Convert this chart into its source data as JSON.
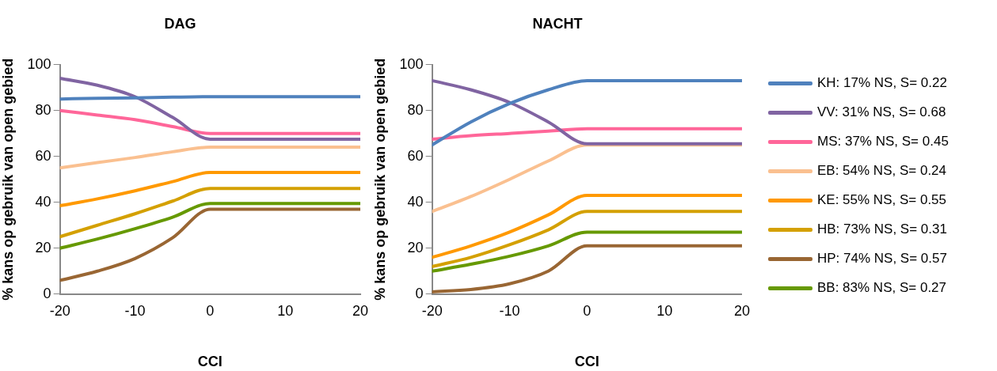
{
  "chart_data": [
    {
      "type": "line",
      "title": "DAG",
      "xlabel": "CCI",
      "ylabel": "% kans op gebruik van open gebied",
      "xlim": [
        -20,
        20
      ],
      "xticks": [
        -20,
        -10,
        0,
        10,
        20
      ],
      "ylim": [
        0,
        100
      ],
      "yticks": [
        0,
        20,
        40,
        60,
        80,
        100
      ],
      "grid": false,
      "legend": false,
      "marker": "none",
      "line_style": "solid",
      "x": [
        -20,
        -15,
        -10,
        -5,
        0,
        20
      ],
      "series": [
        {
          "color": "#4f81bd",
          "values": [
            85,
            85.3,
            85.5,
            85.8,
            86,
            86
          ]
        },
        {
          "color": "#8064a2",
          "values": [
            94,
            91,
            86,
            77,
            67.5,
            67.5
          ]
        },
        {
          "color": "#ff6699",
          "values": [
            80,
            78,
            76,
            73,
            70,
            70
          ]
        },
        {
          "color": "#fac090",
          "values": [
            55,
            57.3,
            59.5,
            62,
            64,
            64
          ]
        },
        {
          "color": "#ff9900",
          "values": [
            38.5,
            41.5,
            45,
            49,
            53,
            53
          ]
        },
        {
          "color": "#d4a000",
          "values": [
            25,
            30,
            35,
            40.5,
            46,
            46
          ]
        },
        {
          "color": "#996633",
          "values": [
            6,
            10,
            15.5,
            24.5,
            37,
            37
          ]
        },
        {
          "color": "#669900",
          "values": [
            20,
            24,
            28.5,
            33.5,
            39.5,
            39.5
          ]
        }
      ]
    },
    {
      "type": "line",
      "title": "NACHT",
      "xlabel": "CCI",
      "ylabel": "% kans op gebruik van open gebied",
      "xlim": [
        -20,
        20
      ],
      "xticks": [
        -20,
        -10,
        0,
        10,
        20
      ],
      "ylim": [
        0,
        100
      ],
      "yticks": [
        0,
        20,
        40,
        60,
        80,
        100
      ],
      "grid": false,
      "legend": "right",
      "marker": "none",
      "line_style": "solid",
      "x": [
        -20,
        -15,
        -10,
        -5,
        0,
        20
      ],
      "series": [
        {
          "name": "KH: 17% NS, S= 0.22",
          "color": "#4f81bd",
          "values": [
            65,
            75,
            83,
            89,
            93,
            93
          ]
        },
        {
          "name": "VV: 31% NS, S= 0.68",
          "color": "#8064a2",
          "values": [
            93,
            89,
            83.5,
            75,
            65.5,
            65.5
          ]
        },
        {
          "name": "MS: 37% NS, S= 0.45",
          "color": "#ff6699",
          "values": [
            67.5,
            69,
            70,
            71,
            72,
            72
          ]
        },
        {
          "name": "EB: 54% NS, S= 0.24",
          "color": "#fac090",
          "values": [
            36,
            42.5,
            50,
            58,
            65,
            65
          ]
        },
        {
          "name": "KE: 55% NS, S= 0.55",
          "color": "#ff9900",
          "values": [
            16,
            21,
            27,
            34.5,
            43,
            43
          ]
        },
        {
          "name": "HB: 73% NS, S= 0.31",
          "color": "#d4a000",
          "values": [
            12,
            16,
            21.5,
            28,
            36,
            36
          ]
        },
        {
          "name": "HP: 74% NS, S= 0.57",
          "color": "#996633",
          "values": [
            1,
            2,
            4.5,
            10,
            21,
            21
          ]
        },
        {
          "name": "BB: 83% NS, S= 0.27",
          "color": "#669900",
          "values": [
            10,
            13,
            16.5,
            21,
            27,
            27
          ]
        }
      ]
    }
  ]
}
